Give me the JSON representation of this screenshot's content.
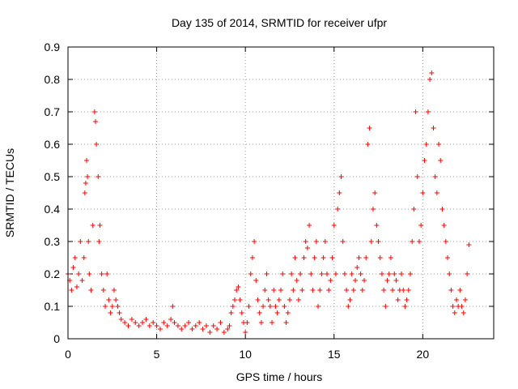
{
  "chart_data": {
    "type": "scatter",
    "title": "Day 135 of 2014, SRMTID for receiver ufpr",
    "xlabel": "GPS time / hours",
    "ylabel": "SRMTID / TECUs",
    "xlim": [
      0,
      24
    ],
    "ylim": [
      0,
      0.9
    ],
    "xticks": [
      0,
      5,
      10,
      15,
      20
    ],
    "yticks": [
      0,
      0.1,
      0.2,
      0.3,
      0.4,
      0.5,
      0.6,
      0.7,
      0.8,
      0.9
    ],
    "xtick_labels": [
      "0",
      "5",
      "10",
      "15",
      "20"
    ],
    "ytick_labels": [
      "0",
      "0.1",
      "0.2",
      "0.3",
      "0.4",
      "0.5",
      "0.6",
      "0.7",
      "0.8",
      "0.9"
    ],
    "grid": true,
    "marker": "+",
    "color": "#ff0000",
    "series": [
      {
        "name": "SRMTID",
        "x": [
          0.0,
          0.1,
          0.2,
          0.3,
          0.4,
          0.5,
          0.6,
          0.7,
          0.8,
          0.9,
          0.95,
          1.0,
          1.05,
          1.1,
          1.15,
          1.2,
          1.3,
          1.4,
          1.5,
          1.55,
          1.6,
          1.7,
          1.75,
          1.8,
          1.9,
          2.0,
          2.1,
          2.2,
          2.3,
          2.4,
          2.5,
          2.6,
          2.7,
          2.8,
          2.9,
          3.0,
          3.2,
          3.4,
          3.6,
          3.8,
          4.0,
          4.2,
          4.4,
          4.6,
          4.8,
          5.0,
          5.2,
          5.4,
          5.6,
          5.8,
          5.9,
          6.0,
          6.2,
          6.4,
          6.6,
          6.8,
          7.0,
          7.2,
          7.4,
          7.6,
          7.8,
          8.0,
          8.2,
          8.4,
          8.6,
          8.8,
          9.0,
          9.1,
          9.2,
          9.3,
          9.4,
          9.5,
          9.6,
          9.7,
          9.8,
          9.9,
          10.0,
          10.1,
          10.2,
          10.3,
          10.4,
          10.5,
          10.6,
          10.7,
          10.8,
          10.9,
          11.0,
          11.1,
          11.2,
          11.3,
          11.4,
          11.5,
          11.6,
          11.7,
          11.8,
          11.9,
          12.0,
          12.1,
          12.2,
          12.3,
          12.4,
          12.5,
          12.6,
          12.7,
          12.8,
          12.9,
          13.0,
          13.1,
          13.2,
          13.3,
          13.4,
          13.5,
          13.6,
          13.7,
          13.8,
          13.9,
          14.0,
          14.1,
          14.2,
          14.3,
          14.4,
          14.5,
          14.6,
          14.7,
          14.8,
          14.9,
          15.0,
          15.1,
          15.2,
          15.3,
          15.4,
          15.5,
          15.6,
          15.7,
          15.8,
          15.9,
          16.0,
          16.1,
          16.2,
          16.3,
          16.4,
          16.5,
          16.6,
          16.7,
          16.8,
          16.9,
          17.0,
          17.1,
          17.2,
          17.3,
          17.4,
          17.5,
          17.6,
          17.7,
          17.8,
          17.9,
          18.0,
          18.1,
          18.2,
          18.3,
          18.4,
          18.5,
          18.6,
          18.7,
          18.8,
          18.9,
          19.0,
          19.1,
          19.2,
          19.3,
          19.4,
          19.5,
          19.6,
          19.7,
          19.8,
          19.9,
          20.0,
          20.1,
          20.2,
          20.3,
          20.4,
          20.5,
          20.6,
          20.7,
          20.8,
          20.9,
          21.0,
          21.1,
          21.2,
          21.3,
          21.4,
          21.5,
          21.6,
          21.7,
          21.8,
          21.9,
          22.0,
          22.1,
          22.2,
          22.3,
          22.4,
          22.5,
          22.6
        ],
        "y": [
          0.2,
          0.18,
          0.15,
          0.22,
          0.25,
          0.16,
          0.2,
          0.3,
          0.18,
          0.25,
          0.45,
          0.48,
          0.55,
          0.5,
          0.3,
          0.2,
          0.15,
          0.35,
          0.7,
          0.67,
          0.6,
          0.5,
          0.3,
          0.35,
          0.2,
          0.15,
          0.1,
          0.2,
          0.12,
          0.08,
          0.1,
          0.15,
          0.12,
          0.1,
          0.08,
          0.06,
          0.05,
          0.04,
          0.06,
          0.05,
          0.04,
          0.05,
          0.06,
          0.04,
          0.05,
          0.04,
          0.03,
          0.05,
          0.04,
          0.06,
          0.1,
          0.05,
          0.04,
          0.03,
          0.04,
          0.05,
          0.03,
          0.04,
          0.05,
          0.03,
          0.04,
          0.02,
          0.04,
          0.03,
          0.05,
          0.02,
          0.03,
          0.04,
          0.08,
          0.1,
          0.12,
          0.15,
          0.16,
          0.12,
          0.08,
          0.05,
          0.02,
          0.05,
          0.1,
          0.2,
          0.25,
          0.3,
          0.18,
          0.12,
          0.08,
          0.05,
          0.1,
          0.15,
          0.2,
          0.12,
          0.1,
          0.05,
          0.15,
          0.1,
          0.08,
          0.12,
          0.15,
          0.2,
          0.1,
          0.05,
          0.08,
          0.12,
          0.2,
          0.15,
          0.25,
          0.18,
          0.12,
          0.2,
          0.15,
          0.25,
          0.3,
          0.28,
          0.35,
          0.2,
          0.15,
          0.25,
          0.3,
          0.1,
          0.15,
          0.2,
          0.25,
          0.3,
          0.2,
          0.15,
          0.18,
          0.25,
          0.35,
          0.2,
          0.4,
          0.45,
          0.5,
          0.3,
          0.2,
          0.15,
          0.1,
          0.12,
          0.2,
          0.15,
          0.18,
          0.22,
          0.25,
          0.2,
          0.15,
          0.18,
          0.25,
          0.6,
          0.65,
          0.3,
          0.4,
          0.45,
          0.35,
          0.3,
          0.25,
          0.2,
          0.15,
          0.1,
          0.18,
          0.2,
          0.25,
          0.15,
          0.2,
          0.18,
          0.12,
          0.15,
          0.2,
          0.15,
          0.1,
          0.12,
          0.15,
          0.2,
          0.3,
          0.4,
          0.7,
          0.5,
          0.3,
          0.35,
          0.45,
          0.55,
          0.6,
          0.7,
          0.8,
          0.82,
          0.65,
          0.5,
          0.45,
          0.6,
          0.55,
          0.4,
          0.35,
          0.3,
          0.25,
          0.2,
          0.15,
          0.1,
          0.08,
          0.12,
          0.1,
          0.15,
          0.1,
          0.08,
          0.12,
          0.2,
          0.29
        ]
      }
    ]
  }
}
